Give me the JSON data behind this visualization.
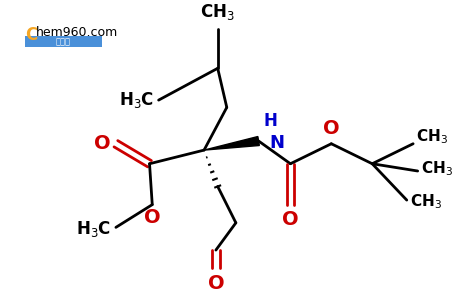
{
  "bg_color": "#ffffff",
  "bond_color": "#000000",
  "o_color": "#cc0000",
  "n_color": "#0000cc",
  "figsize": [
    4.74,
    2.93
  ],
  "dpi": 100,
  "xlim": [
    0,
    474
  ],
  "ylim": [
    0,
    293
  ]
}
